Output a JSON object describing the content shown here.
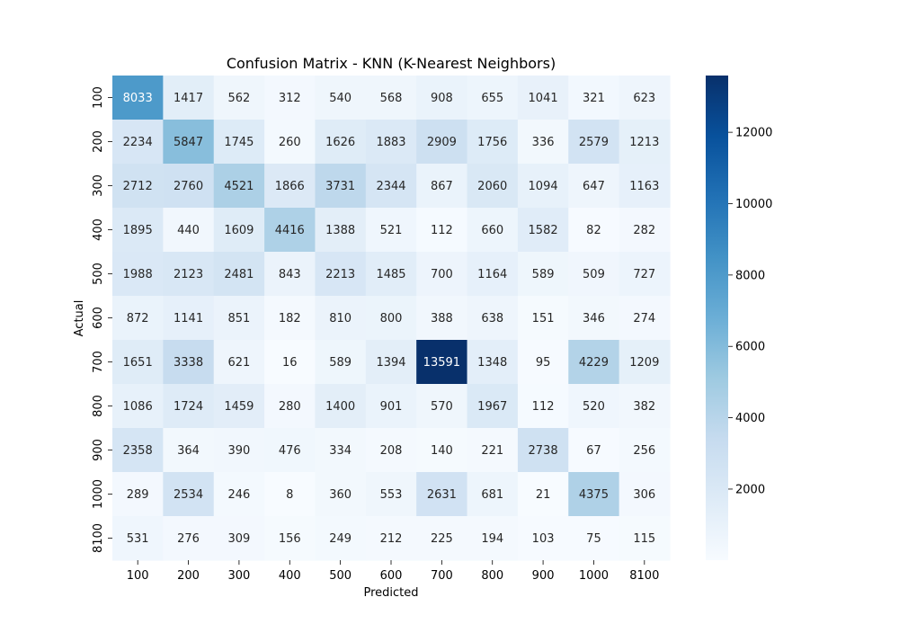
{
  "chart_data": {
    "type": "heatmap",
    "title": "Confusion Matrix - KNN (K-Nearest Neighbors)",
    "xlabel": "Predicted",
    "ylabel": "Actual",
    "x_categories": [
      "100",
      "200",
      "300",
      "400",
      "500",
      "600",
      "700",
      "800",
      "900",
      "1000",
      "8100"
    ],
    "y_categories": [
      "100",
      "200",
      "300",
      "400",
      "500",
      "600",
      "700",
      "800",
      "900",
      "1000",
      "8100"
    ],
    "matrix": [
      [
        8033,
        1417,
        562,
        312,
        540,
        568,
        908,
        655,
        1041,
        321,
        623
      ],
      [
        2234,
        5847,
        1745,
        260,
        1626,
        1883,
        2909,
        1756,
        336,
        2579,
        1213
      ],
      [
        2712,
        2760,
        4521,
        1866,
        3731,
        2344,
        867,
        2060,
        1094,
        647,
        1163
      ],
      [
        1895,
        440,
        1609,
        4416,
        1388,
        521,
        112,
        660,
        1582,
        82,
        282
      ],
      [
        1988,
        2123,
        2481,
        843,
        2213,
        1485,
        700,
        1164,
        589,
        509,
        727
      ],
      [
        872,
        1141,
        851,
        182,
        810,
        800,
        388,
        638,
        151,
        346,
        274
      ],
      [
        1651,
        3338,
        621,
        16,
        589,
        1394,
        13591,
        1348,
        95,
        4229,
        1209
      ],
      [
        1086,
        1724,
        1459,
        280,
        1400,
        901,
        570,
        1967,
        112,
        520,
        382
      ],
      [
        2358,
        364,
        390,
        476,
        334,
        208,
        140,
        221,
        2738,
        67,
        256
      ],
      [
        289,
        2534,
        246,
        8,
        360,
        553,
        2631,
        681,
        21,
        4375,
        306
      ],
      [
        531,
        276,
        309,
        156,
        249,
        212,
        225,
        194,
        103,
        75,
        115
      ]
    ],
    "colorbar": {
      "colormap": "Blues",
      "range": [
        8,
        13591
      ],
      "ticks": [
        "2000",
        "4000",
        "6000",
        "8000",
        "10000",
        "12000"
      ]
    },
    "grid": false
  }
}
